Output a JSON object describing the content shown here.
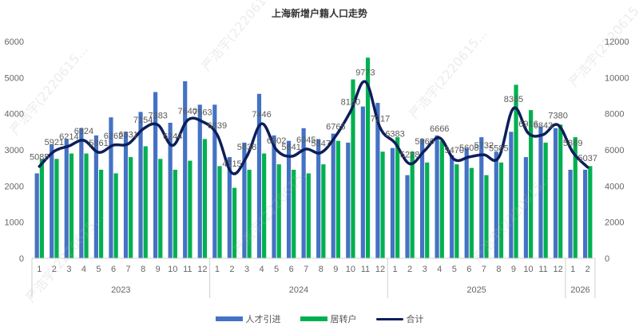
{
  "chart_data": {
    "type": "bar",
    "title": "上海新增户籍人口走势",
    "xlabel": "",
    "ylabel": "",
    "ylim": [
      0,
      6000
    ],
    "y2lim": [
      0,
      12000
    ],
    "left_ticks": [
      "0",
      "1000",
      "2000",
      "3000",
      "4000",
      "5000",
      "6000"
    ],
    "right_ticks": [
      "0",
      "2000",
      "4000",
      "6000",
      "8000",
      "10000",
      "12000"
    ],
    "grid": false,
    "legend_position": "bottom",
    "years": [
      {
        "label": "2023",
        "months": 12
      },
      {
        "label": "2024",
        "months": 12
      },
      {
        "label": "2025",
        "months": 12
      },
      {
        "label": "2026",
        "months": 2
      }
    ],
    "categories": [
      "1",
      "2",
      "3",
      "4",
      "5",
      "6",
      "7",
      "8",
      "9",
      "10",
      "11",
      "12",
      "1",
      "2",
      "3",
      "4",
      "5",
      "6",
      "7",
      "8",
      "9",
      "10",
      "11",
      "12",
      "1",
      "2",
      "3",
      "4",
      "5",
      "6",
      "7",
      "8",
      "9",
      "10",
      "11",
      "12",
      "1",
      "2"
    ],
    "series": [
      {
        "name": "人才引进",
        "type": "bar",
        "axis": "left",
        "color": "#4472C4",
        "values": [
          2350,
          3150,
          3300,
          3600,
          3400,
          3900,
          3500,
          4050,
          4600,
          3750,
          4900,
          4250,
          4250,
          2800,
          3200,
          4550,
          3400,
          3250,
          3600,
          3300,
          3450,
          3200,
          4200,
          4300,
          3050,
          2300,
          3300,
          3400,
          2850,
          3050,
          3350,
          2950,
          3500,
          2800,
          3650,
          3600,
          2450,
          2450
        ]
      },
      {
        "name": "居转户",
        "type": "bar",
        "axis": "left",
        "color": "#00B050",
        "values": [
          2750,
          2750,
          2900,
          2900,
          2450,
          2350,
          2800,
          3100,
          2750,
          2450,
          2700,
          3300,
          2550,
          1950,
          2450,
          2900,
          2600,
          2450,
          2350,
          2600,
          3250,
          4950,
          5550,
          2950,
          3350,
          2950,
          2650,
          3250,
          2600,
          2500,
          2300,
          2650,
          4800,
          4100,
          3200,
          3700,
          3350,
          2550
        ]
      },
      {
        "name": "合计",
        "type": "line",
        "axis": "right",
        "color": "#0D1E5A",
        "values": [
          5085,
          5921,
          6214,
          6524,
          5861,
          6262,
          6331,
          7154,
          7383,
          6244,
          7640,
          7563,
          6839,
          4715,
          5638,
          7446,
          6002,
          5641,
          6045,
          5847,
          6765,
          8130,
          9773,
          7217,
          6383,
          5228,
          5960,
          6666,
          5470,
          5608,
          5732,
          5585,
          8305,
          6916,
          6843,
          7380,
          5869,
          5037
        ]
      }
    ]
  },
  "legend": {
    "talent": "人才引进",
    "transfer": "居转户",
    "total": "合计"
  },
  "watermark": "严浩宇(2220615..."
}
